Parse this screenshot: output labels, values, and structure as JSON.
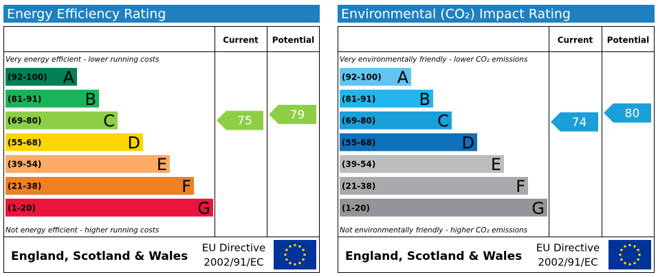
{
  "panels": [
    {
      "title": "Energy Efficiency Rating",
      "columns": [
        "Current",
        "Potential"
      ],
      "top_note": "Very energy efficient - lower running costs",
      "bottom_note": "Not energy efficient - higher running costs",
      "bands": [
        {
          "range": "(92-100)",
          "letter": "A",
          "color": "#008054"
        },
        {
          "range": "(81-91)",
          "letter": "B",
          "color": "#19b459"
        },
        {
          "range": "(69-80)",
          "letter": "C",
          "color": "#8dce46"
        },
        {
          "range": "(55-68)",
          "letter": "D",
          "color": "#ffd500"
        },
        {
          "range": "(39-54)",
          "letter": "E",
          "color": "#fcaa65"
        },
        {
          "range": "(21-38)",
          "letter": "F",
          "color": "#ef8023"
        },
        {
          "range": "(1-20)",
          "letter": "G",
          "color": "#e9153b"
        }
      ],
      "current": 75,
      "potential": 79,
      "footer": {
        "region": "England, Scotland & Wales",
        "directive": "EU Directive",
        "number": "2002/91/EC"
      }
    },
    {
      "title": "Environmental (CO₂) Impact Rating",
      "columns": [
        "Current",
        "Potential"
      ],
      "top_note": "Very environmentally friendly - lower CO₂ emissions",
      "bottom_note": "Not environmentally friendly - higher CO₂ emissions",
      "bands": [
        {
          "range": "(92-100)",
          "letter": "A",
          "color": "#63c5ef"
        },
        {
          "range": "(81-91)",
          "letter": "B",
          "color": "#22b5eb"
        },
        {
          "range": "(69-80)",
          "letter": "C",
          "color": "#1a9fd8"
        },
        {
          "range": "(55-68)",
          "letter": "D",
          "color": "#0e6fba"
        },
        {
          "range": "(39-54)",
          "letter": "E",
          "color": "#bbbdbf"
        },
        {
          "range": "(21-38)",
          "letter": "F",
          "color": "#a7a9ac"
        },
        {
          "range": "(1-20)",
          "letter": "G",
          "color": "#939598"
        }
      ],
      "current": 74,
      "potential": 80,
      "footer": {
        "region": "England, Scotland & Wales",
        "directive": "EU Directive",
        "number": "2002/91/EC"
      }
    }
  ]
}
